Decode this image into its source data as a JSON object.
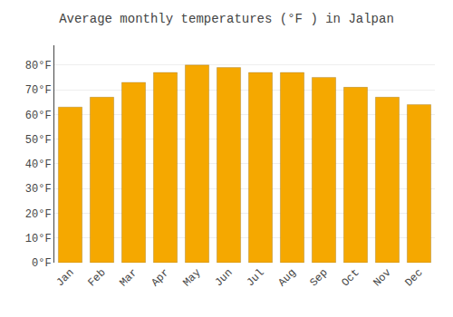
{
  "chart_data": {
    "type": "bar",
    "title": "Average monthly temperatures (°F ) in Jalpan",
    "categories": [
      "Jan",
      "Feb",
      "Mar",
      "Apr",
      "May",
      "Jun",
      "Jul",
      "Aug",
      "Sep",
      "Oct",
      "Nov",
      "Dec"
    ],
    "values": [
      63,
      67,
      73,
      77,
      80,
      79,
      77,
      77,
      75,
      71,
      67,
      64
    ],
    "color": "#F5A800",
    "ylim": [
      0,
      88
    ],
    "yticks": [
      {
        "value": 0,
        "label": "0°F"
      },
      {
        "value": 10,
        "label": "10°F"
      },
      {
        "value": 20,
        "label": "20°F"
      },
      {
        "value": 30,
        "label": "30°F"
      },
      {
        "value": 40,
        "label": "40°F"
      },
      {
        "value": 50,
        "label": "50°F"
      },
      {
        "value": 60,
        "label": "60°F"
      },
      {
        "value": 70,
        "label": "70°F"
      },
      {
        "value": 80,
        "label": "80°F"
      }
    ],
    "grid": true
  }
}
